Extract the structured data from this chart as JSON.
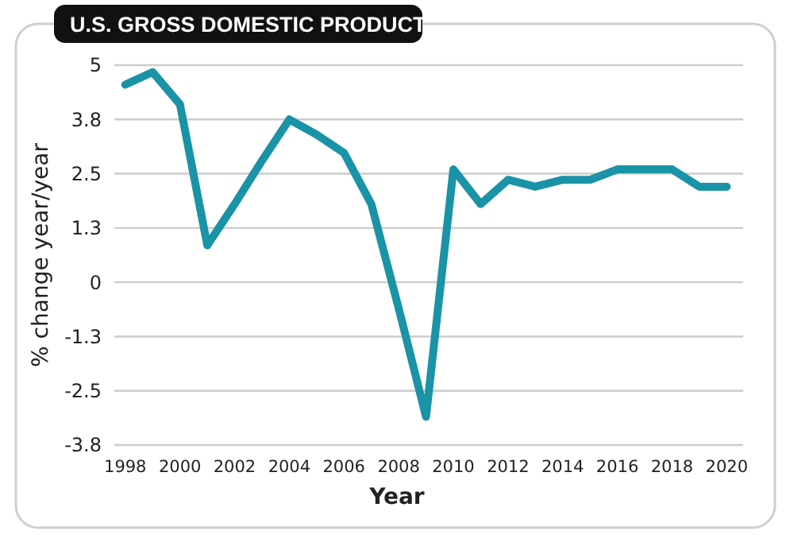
{
  "chart_data": {
    "type": "line",
    "title": "U.S. GROSS DOMESTIC PRODUCT",
    "xlabel": "Year",
    "ylabel": "% change year/year",
    "x": [
      1998,
      1999,
      2000,
      2001,
      2002,
      2003,
      2004,
      2005,
      2006,
      2007,
      2008,
      2009,
      2010,
      2011,
      2012,
      2013,
      2014,
      2015,
      2016,
      2017,
      2018,
      2019,
      2020
    ],
    "series": [
      {
        "color": "#1a93a6",
        "values": [
          4.55,
          4.84,
          4.1,
          0.85,
          1.8,
          2.8,
          3.75,
          3.4,
          2.98,
          1.8,
          -0.6,
          -3.1,
          2.6,
          1.8,
          2.36,
          2.2,
          2.36,
          2.36,
          2.6,
          2.6,
          2.6,
          2.2,
          2.2
        ]
      }
    ],
    "xlim": [
      1997.6,
      2020.6
    ],
    "xticks": [
      1998,
      2000,
      2002,
      2004,
      2006,
      2008,
      2010,
      2012,
      2014,
      2016,
      2018,
      2020
    ],
    "ylim": [
      -3.75,
      5
    ],
    "yticks": [
      5,
      {
        "value": 3.75,
        "label": "3.8"
      },
      {
        "value": 2.5,
        "label": "2.5"
      },
      {
        "value": 1.25,
        "label": "1.3"
      },
      0,
      {
        "value": -1.25,
        "label": "-1.3"
      },
      {
        "value": -2.5,
        "label": "-2.5"
      },
      {
        "value": -3.75,
        "label": "-3.8"
      }
    ],
    "grid": "y",
    "marker": "none",
    "line_style": "solid"
  }
}
